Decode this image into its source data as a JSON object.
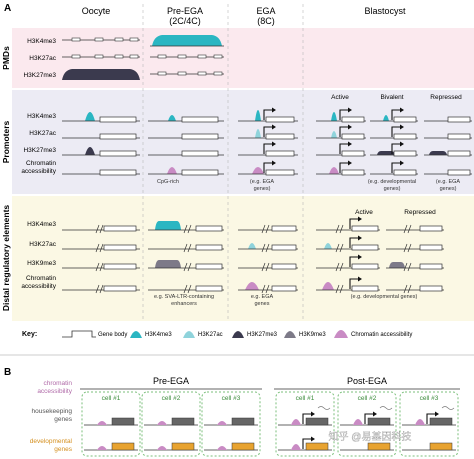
{
  "panel_a": {
    "label": "A",
    "stages": [
      "Oocyte",
      "Pre-EGA",
      "(2C/4C)",
      "EGA",
      "(8C)",
      "Blastocyst"
    ],
    "sections": {
      "pmd": "PMDs",
      "promoters": "Promoters",
      "distal": "Distal regulatory elements"
    },
    "marks": {
      "h3k4me3": "H3K4me3",
      "h3k27ac": "H3K27ac",
      "h3k27me3": "H3K27me3",
      "h3k9me3": "H3K9me3",
      "chromatin": "Chromatin",
      "accessibility": "accessibility"
    },
    "blasto_prom": [
      "Active",
      "Bivalent",
      "Repressed"
    ],
    "blasto_distal": [
      "Active",
      "Repressed"
    ],
    "notes": {
      "cpg": "CpG-rich",
      "ega_prom_1": "(e.g. EGA",
      "ega_prom_2": "genes)",
      "ega_distal_1": "e.g. EGA",
      "ega_distal_2": "genes",
      "dev_prom_1": "(e.g. developmental",
      "dev_prom_2": "genes)",
      "ega_bl_1": "(e.g. EGA",
      "ega_bl_2": "genes)",
      "sva_1": "e.g. SVA-LTR-containing",
      "sva_2": "enhancers",
      "dev_distal": "(e.g. developmental genes)"
    },
    "key": {
      "title": "Key:",
      "items": [
        "Gene body",
        "H3K4me3",
        "H3K27ac",
        "H3K27me3",
        "H3K9me3",
        "Chromatin accessibility"
      ]
    }
  },
  "panel_b": {
    "label": "B",
    "rows": {
      "chromatin": [
        "chromatin",
        "accessibility"
      ],
      "housekeeping": [
        "housekeeping",
        "genes"
      ],
      "developmental": [
        "developmental",
        "genes"
      ]
    },
    "groups": [
      "Pre-EGA",
      "Post-EGA"
    ],
    "cells": [
      "cell #1",
      "cell #2",
      "cell #3",
      "cell #1",
      "cell #2",
      "cell #3"
    ]
  },
  "watermark": "知乎 @易基因科技",
  "colors": {
    "h3k4me3": "#2bb6c2",
    "h3k27ac": "#8fd3db",
    "h3k27me3": "#3b3a4e",
    "h3k9me3": "#7d7a88",
    "chromatin": "#c98bc4",
    "pmd_bg": "#fbe9ee",
    "promoter_bg": "#ecebf4",
    "distal_bg": "#fbf8e4",
    "housekeeping": "#666666",
    "developmental": "#e8a330",
    "cell_border": "#7bbf7b"
  }
}
